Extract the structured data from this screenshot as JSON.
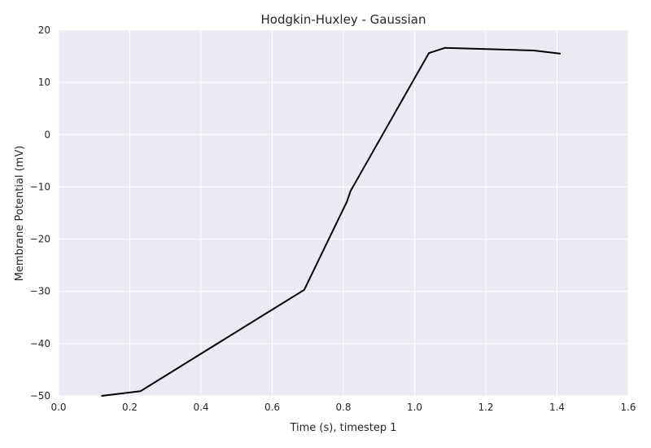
{
  "chart_data": {
    "type": "line",
    "title": "Hodgkin-Huxley - Gaussian",
    "xlabel": "Time (s), timestep 1",
    "ylabel": "Membrane Potential (mV)",
    "xlim": [
      0.0,
      1.6
    ],
    "ylim": [
      -50,
      20
    ],
    "x_ticks": [
      0.0,
      0.2,
      0.4,
      0.6,
      0.8,
      1.0,
      1.2,
      1.4,
      1.6
    ],
    "x_tick_labels": [
      "0.0",
      "0.2",
      "0.4",
      "0.6",
      "0.8",
      "1.0",
      "1.2",
      "1.4",
      "1.6"
    ],
    "y_ticks": [
      -50,
      -40,
      -30,
      -20,
      -10,
      0,
      10,
      20
    ],
    "y_tick_labels": [
      "−50",
      "−40",
      "−30",
      "−20",
      "−10",
      "0",
      "10",
      "20"
    ],
    "grid": true,
    "series": [
      {
        "color": "#000000",
        "x": [
          0.12,
          0.23,
          0.69,
          0.81,
          0.82,
          1.04,
          1.085,
          1.335,
          1.41
        ],
        "y": [
          -50.0,
          -49.1,
          -29.7,
          -12.8,
          -10.8,
          15.6,
          16.6,
          16.1,
          15.5
        ]
      }
    ],
    "colors": {
      "plot_background": "#eaeaf2",
      "grid": "#ffffff",
      "line": "#000000"
    }
  }
}
